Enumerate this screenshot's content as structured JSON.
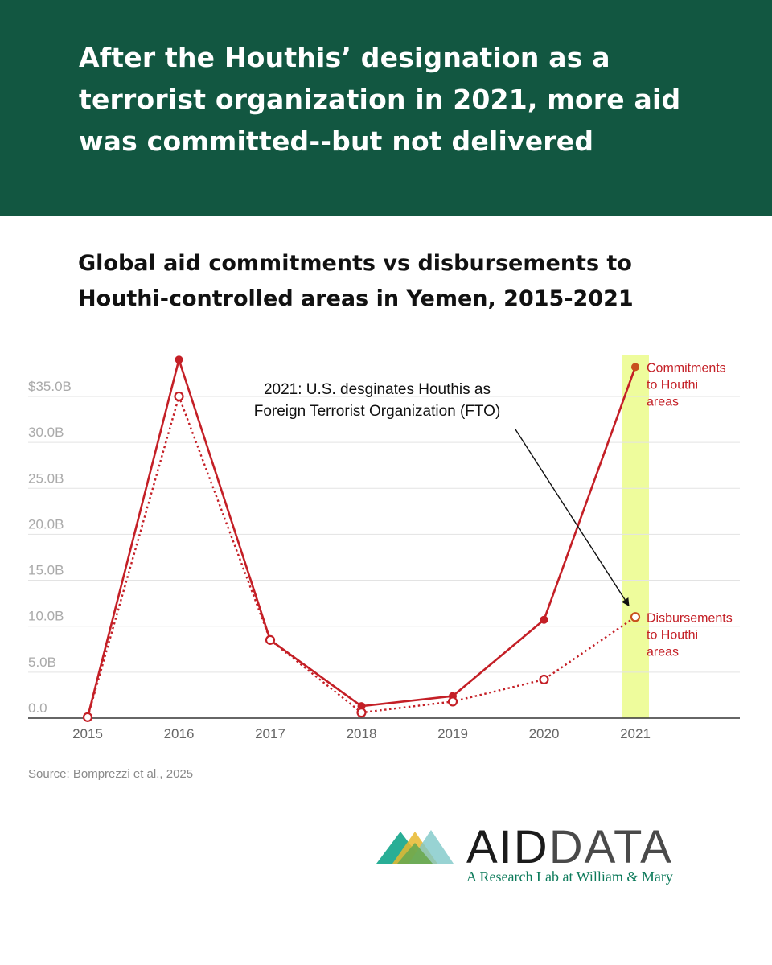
{
  "headline": "After the Houthis’ designation as a terrorist organization in 2021, more aid was committed--but not delivered",
  "source": "Source: Bomprezzi et al., 2025",
  "logo": {
    "word_aid": "AID",
    "word_data": "DATA",
    "tagline": "A Research Lab at William & Mary",
    "colors": [
      "#12a58b",
      "#e8b82e",
      "#7ec8c8",
      "#6aa84f"
    ]
  },
  "chart_data": {
    "type": "line",
    "title": "Global aid commitments vs disbursements to Houthi-controlled areas in Yemen, 2015-2021",
    "xlabel": "",
    "ylabel": "",
    "x": [
      "2015",
      "2016",
      "2017",
      "2018",
      "2019",
      "2020",
      "2021"
    ],
    "yticks": [
      "0.0",
      "5.0B",
      "10.0B",
      "15.0B",
      "20.0B",
      "25.0B",
      "30.0B",
      "$35.0B"
    ],
    "ylim": [
      0,
      35
    ],
    "grid": true,
    "highlight": "2021",
    "highlight_color": "#eefc9c",
    "series": [
      {
        "name": "Commitments to Houthi areas",
        "values": [
          0.1,
          39.0,
          8.5,
          1.3,
          2.4,
          10.7,
          38.2
        ],
        "style": "solid",
        "color": "#c41f26",
        "label_lines": [
          "Commitments",
          "to Houthi",
          "areas"
        ]
      },
      {
        "name": "Disbursements to Houthi areas",
        "values": [
          0.1,
          35.0,
          8.5,
          0.6,
          1.8,
          4.2,
          11.0
        ],
        "style": "dotted",
        "color": "#c41f26",
        "label_lines": [
          "Disbursements",
          "to Houthi",
          "areas"
        ]
      }
    ],
    "annotation": {
      "lines": [
        "2021: U.S. desginates Houthis as",
        "Foreign Terrorist Organization (FTO)"
      ],
      "year": "2021"
    }
  }
}
